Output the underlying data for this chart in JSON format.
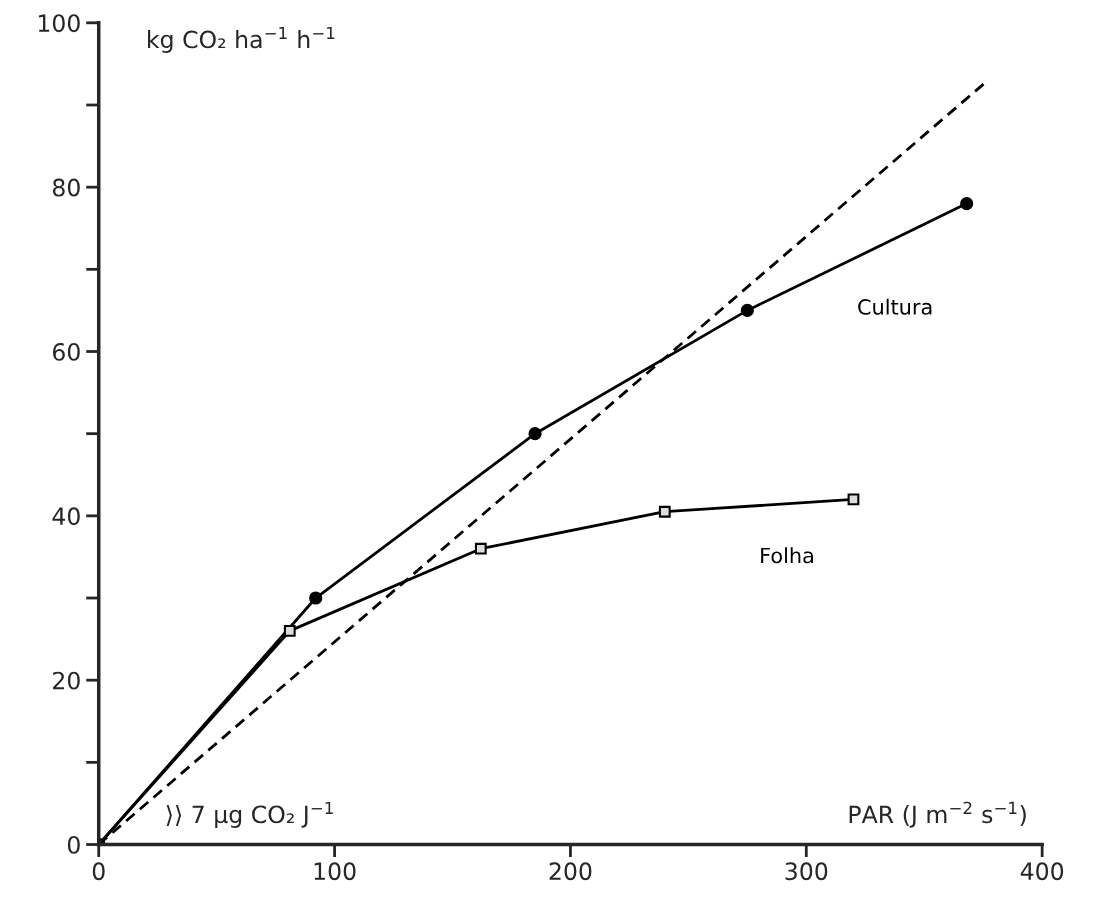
{
  "chart_data": {
    "type": "line",
    "ylabel": "kg CO₂ ha$^{−1}$ h$^{−1}$",
    "xlabel": "PAR (J m$^{−2}$ s$^{−1}$)",
    "annotations": [
      "⟩⟩ 7 µg CO₂ J$^{−1}$"
    ],
    "series": [
      {
        "name": "Cultura",
        "color": "#000000",
        "marker": "circle",
        "line_style": "solid",
        "x": [
          0,
          92,
          185,
          275,
          368
        ],
        "values": [
          0,
          30,
          50,
          65,
          78
        ]
      },
      {
        "name": "Folha",
        "color": "#000000",
        "marker": "square",
        "line_style": "solid",
        "x": [
          0,
          81,
          162,
          240,
          320
        ],
        "values": [
          0,
          26,
          36,
          40.5,
          42
        ]
      },
      {
        "color": "#000000",
        "marker": "none",
        "line_style": "dashed",
        "x": [
          0,
          377
        ],
        "values": [
          0,
          93
        ]
      }
    ],
    "xlim": [
      0,
      400
    ],
    "xticks": [
      0,
      100,
      200,
      300,
      400
    ],
    "ylim": [
      0,
      100
    ],
    "yticks": [
      0,
      {
        "value": 10,
        "label": null
      },
      20,
      {
        "value": 30,
        "label": null
      },
      40,
      {
        "value": 50,
        "label": null
      },
      60,
      {
        "value": 70,
        "label": null
      },
      80,
      {
        "value": 90,
        "label": null
      },
      100
    ],
    "grid": false,
    "legend": false
  }
}
